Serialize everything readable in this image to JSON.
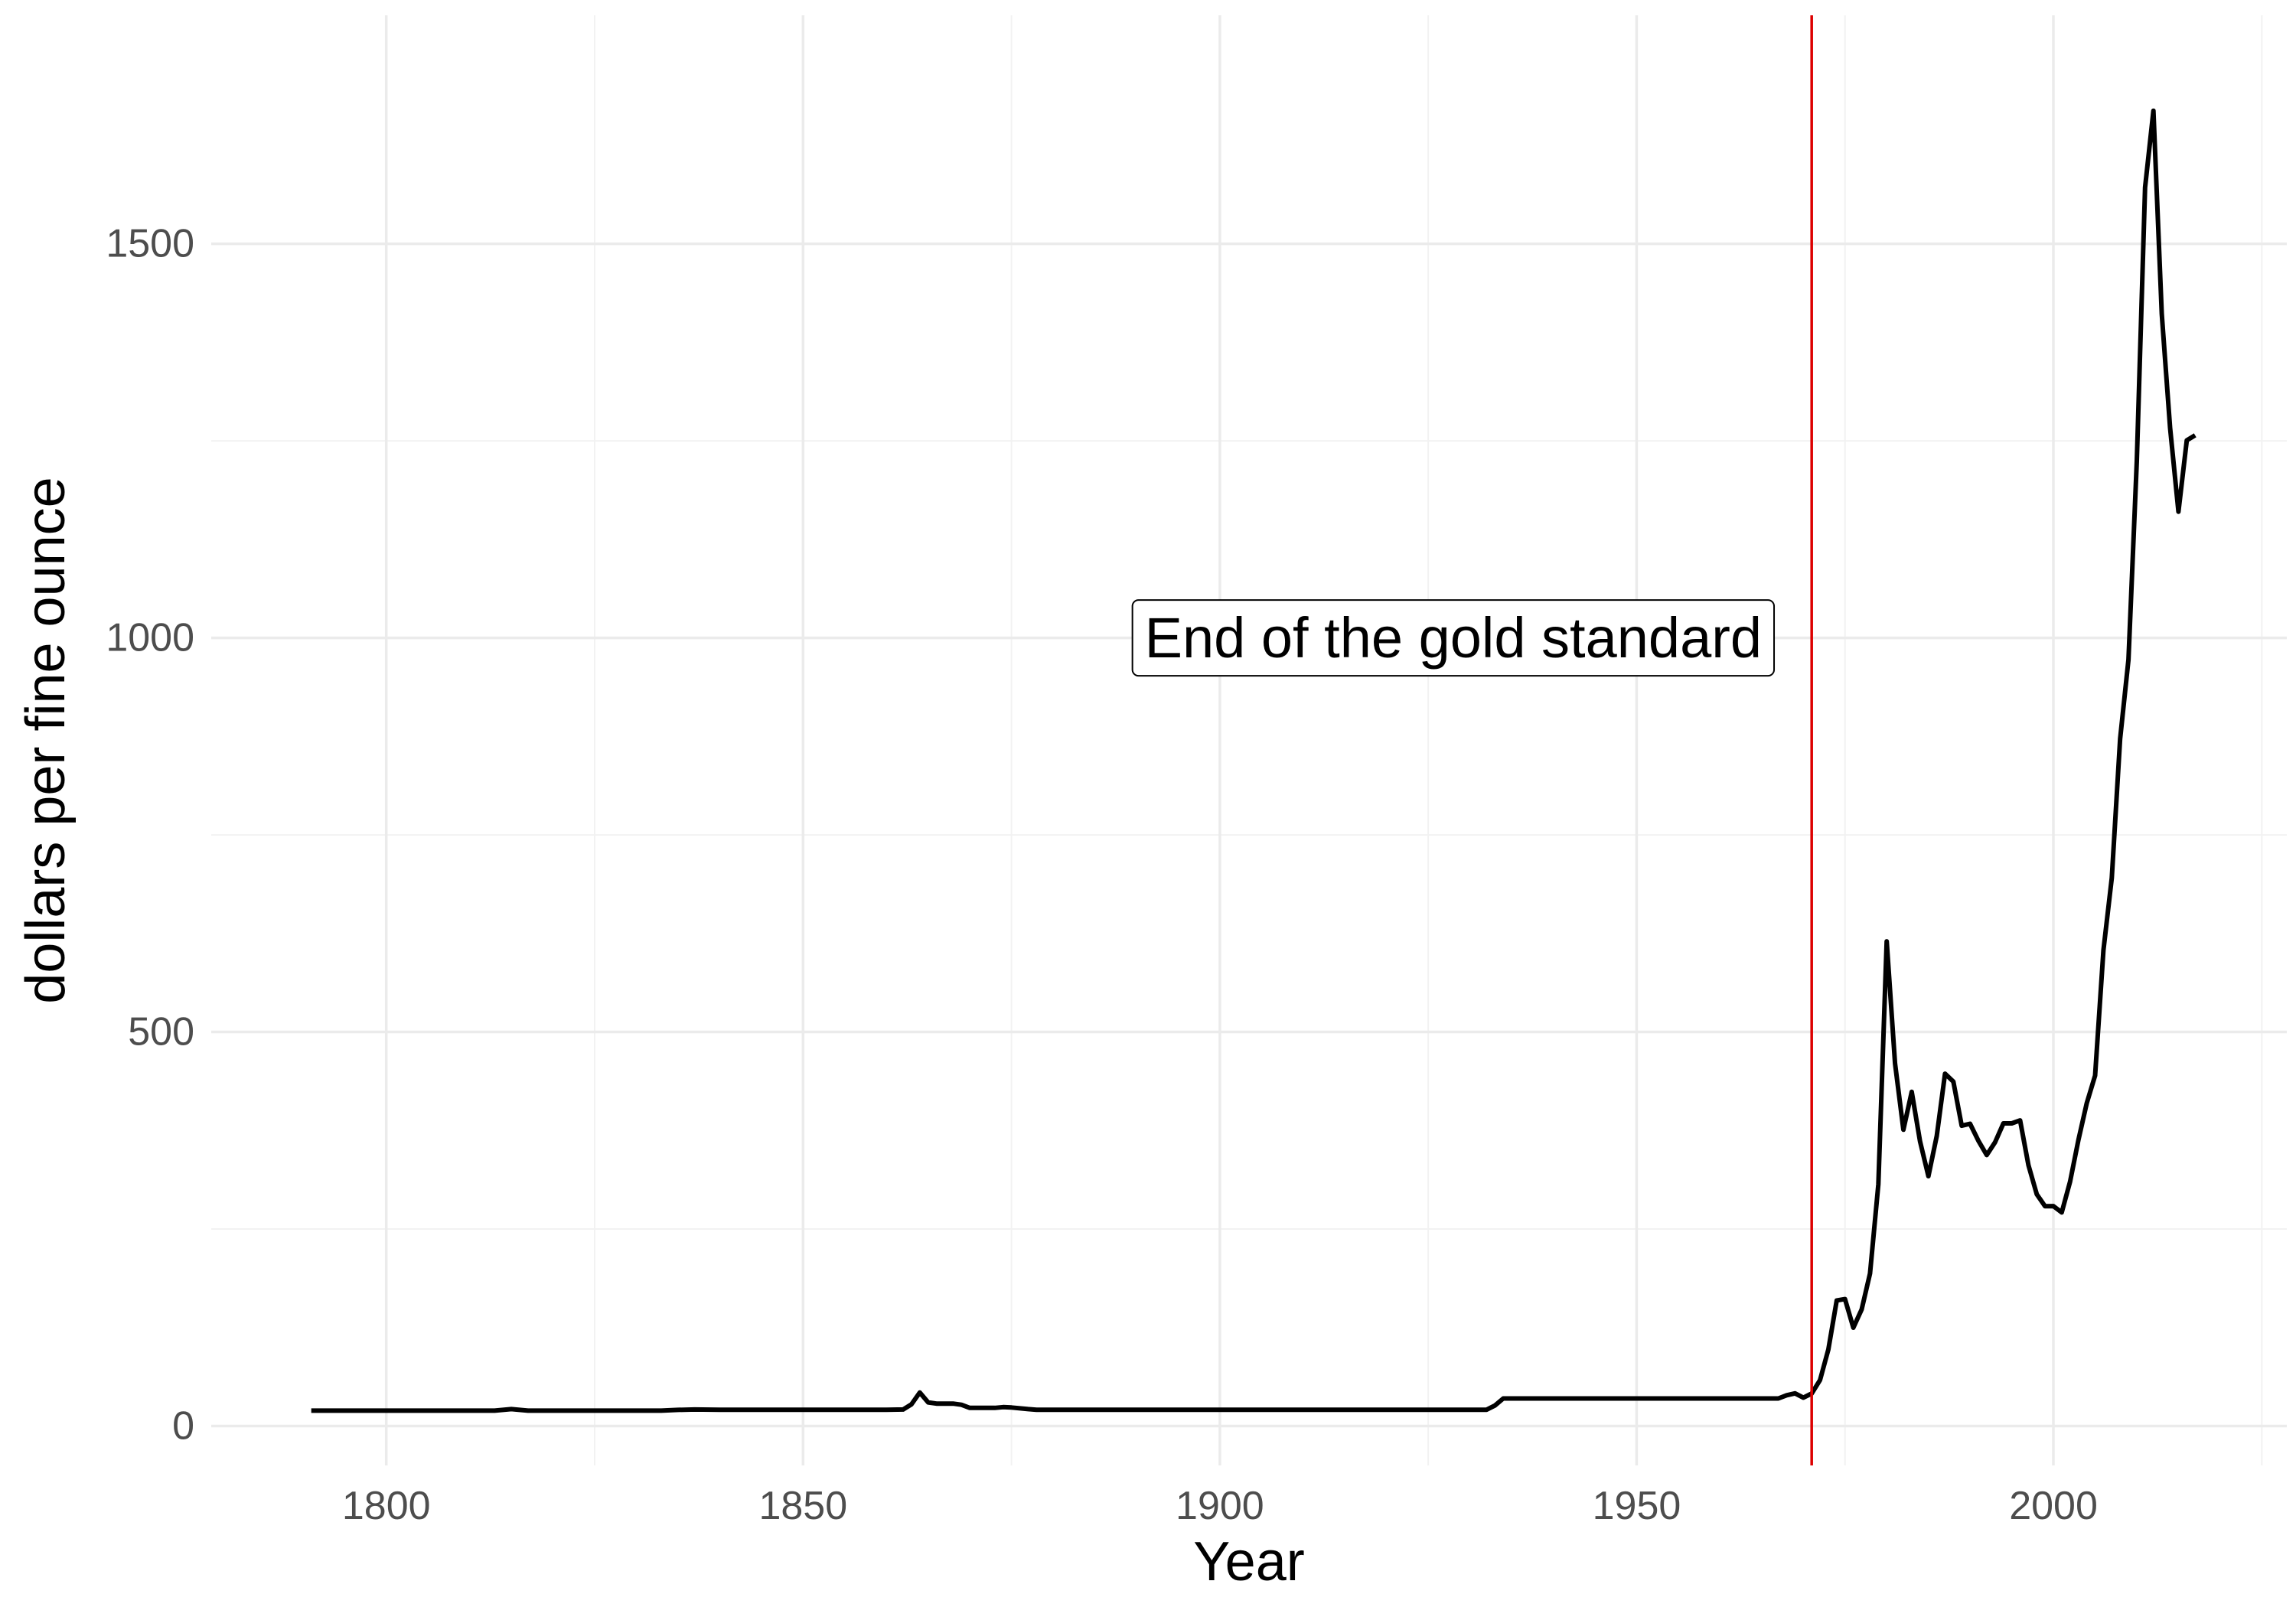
{
  "chart_data": {
    "type": "line",
    "xlabel": "Year",
    "ylabel": "dollars per fine ounce",
    "xlim": [
      1779,
      2028
    ],
    "ylim": [
      -50,
      1790
    ],
    "x_ticks": [
      1800,
      1850,
      1900,
      1950,
      2000
    ],
    "x_minor_ticks": [
      1825,
      1875,
      1925,
      1975,
      2025
    ],
    "y_ticks": [
      0,
      500,
      1000,
      1500
    ],
    "y_minor_ticks": [
      250,
      750,
      1250
    ],
    "grid": true,
    "series": [
      {
        "color": "#000000",
        "x": [
          1791,
          1810,
          1813,
          1815,
          1817,
          1833,
          1835,
          1837,
          1840,
          1860,
          1862,
          1863,
          1864,
          1865,
          1866,
          1868,
          1869,
          1870,
          1873,
          1874,
          1875,
          1877,
          1878,
          1900,
          1932,
          1933,
          1934,
          1940,
          1950,
          1960,
          1967,
          1968,
          1969,
          1970,
          1971,
          1972,
          1973,
          1974,
          1975,
          1976,
          1977,
          1978,
          1979,
          1980,
          1981,
          1982,
          1983,
          1984,
          1985,
          1986,
          1987,
          1988,
          1989,
          1990,
          1991,
          1992,
          1993,
          1994,
          1995,
          1996,
          1997,
          1998,
          1999,
          2000,
          2001,
          2002,
          2003,
          2004,
          2005,
          2006,
          2007,
          2008,
          2009,
          2010,
          2011,
          2012,
          2013,
          2014,
          2015,
          2016,
          2017
        ],
        "y": [
          19.5,
          19.5,
          19.5,
          21.5,
          19.5,
          19.5,
          20.5,
          21,
          20.7,
          20.7,
          21,
          27.5,
          42.5,
          30,
          28.5,
          28.5,
          27,
          23,
          23,
          24,
          23.5,
          21.5,
          20.7,
          20.7,
          20.7,
          26,
          35,
          35,
          35,
          35,
          35,
          39,
          41.5,
          36,
          41.3,
          58.4,
          97.3,
          159.3,
          161.1,
          124.8,
          148,
          193.5,
          306.7,
          615,
          460,
          376,
          424,
          361,
          317,
          368,
          447,
          437,
          381,
          383.5,
          362,
          343.8,
          360,
          384,
          384,
          387.8,
          331,
          294,
          278.9,
          279.1,
          271,
          310,
          363,
          409.7,
          444.7,
          603.8,
          695.4,
          871.9,
          972.4,
          1224.5,
          1571.5,
          1668.9,
          1411.2,
          1266.4,
          1160.1,
          1250.7,
          1257.1
        ]
      }
    ],
    "vline": {
      "x": 1971,
      "color": "#dd0000"
    },
    "annotation": {
      "text": "End of the gold standard",
      "x": 1928,
      "y": 1000
    }
  }
}
